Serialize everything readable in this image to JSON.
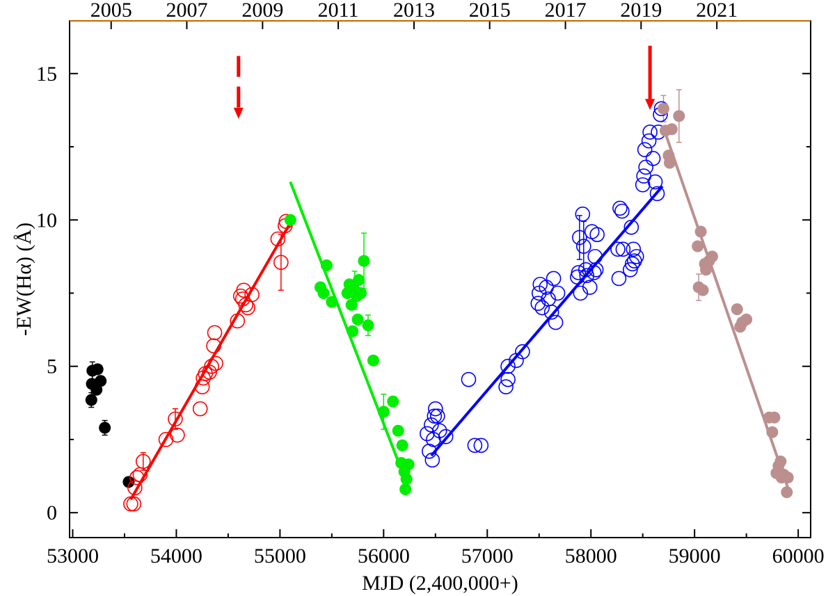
{
  "chart_data": {
    "type": "scatter",
    "title": "",
    "xlabel": "MJD (2,400,000+)",
    "ylabel": "-EW(Hα) (Å)",
    "xlim": [
      52970,
      60120
    ],
    "ylim": [
      -0.85,
      16.8
    ],
    "grid": false,
    "x_ticks": [
      53000,
      54000,
      55000,
      56000,
      57000,
      58000,
      59000,
      60000
    ],
    "y_ticks": [
      0,
      5,
      10,
      15
    ],
    "top_axis": {
      "labels": [
        "2005",
        "2007",
        "2009",
        "2011",
        "2013",
        "2015",
        "2017",
        "2019",
        "2021"
      ],
      "positions_mjd": [
        53371,
        54101,
        54832,
        55562,
        56293,
        57023,
        57754,
        58484,
        59215
      ]
    },
    "series": [
      {
        "color": "#000000",
        "marker": "filled-circle",
        "points": [
          [
            53190,
            4.85
          ],
          [
            53185,
            4.4
          ],
          [
            53240,
            4.9
          ],
          [
            53270,
            4.5
          ],
          [
            53230,
            4.2
          ],
          [
            53180,
            3.85
          ],
          [
            53310,
            2.9
          ],
          [
            53540,
            1.05
          ]
        ],
        "errors": [
          [
            53190,
            0.3
          ],
          [
            53180,
            0.25
          ],
          [
            53310,
            0.25
          ]
        ]
      },
      {
        "color": "#ff0000",
        "marker": "open-circle",
        "points": [
          [
            53560,
            0.3
          ],
          [
            53590,
            0.3
          ],
          [
            53600,
            0.85
          ],
          [
            53620,
            1.2
          ],
          [
            53650,
            1.3
          ],
          [
            53680,
            1.75
          ],
          [
            53900,
            2.5
          ],
          [
            53990,
            3.2
          ],
          [
            54010,
            2.65
          ],
          [
            54230,
            3.55
          ],
          [
            54250,
            4.3
          ],
          [
            54260,
            4.6
          ],
          [
            54280,
            4.75
          ],
          [
            54320,
            4.8
          ],
          [
            54340,
            5.0
          ],
          [
            54360,
            5.7
          ],
          [
            54370,
            6.15
          ],
          [
            54380,
            5.1
          ],
          [
            54590,
            6.55
          ],
          [
            54620,
            7.4
          ],
          [
            54640,
            7.3
          ],
          [
            54650,
            7.6
          ],
          [
            54670,
            7.1
          ],
          [
            54690,
            7.0
          ],
          [
            54730,
            7.45
          ],
          [
            54980,
            9.35
          ],
          [
            55010,
            8.55
          ],
          [
            55050,
            9.8
          ],
          [
            55060,
            9.95
          ]
        ],
        "errors": [
          [
            53680,
            0.3
          ],
          [
            53990,
            0.35
          ],
          [
            55010,
            0.95
          ]
        ],
        "fit": [
          [
            53560,
            0.45
          ],
          [
            55100,
            9.9
          ]
        ],
        "arrow": {
          "x": 54600,
          "y_top": 15.6,
          "y_tip": 13.5,
          "dashed": true
        }
      },
      {
        "color": "#00ee00",
        "marker": "filled-circle",
        "points": [
          [
            55100,
            10.0
          ],
          [
            55390,
            7.7
          ],
          [
            55420,
            7.5
          ],
          [
            55450,
            8.45
          ],
          [
            55500,
            7.2
          ],
          [
            55650,
            7.5
          ],
          [
            55670,
            7.8
          ],
          [
            55690,
            7.1
          ],
          [
            55700,
            6.2
          ],
          [
            55720,
            7.6
          ],
          [
            55740,
            7.4
          ],
          [
            55750,
            6.6
          ],
          [
            55760,
            7.95
          ],
          [
            55780,
            7.5
          ],
          [
            55810,
            8.6
          ],
          [
            55850,
            6.4
          ],
          [
            55900,
            5.2
          ],
          [
            56000,
            3.45
          ],
          [
            56090,
            3.8
          ],
          [
            56140,
            2.8
          ],
          [
            56170,
            1.7
          ],
          [
            56180,
            2.3
          ],
          [
            56200,
            1.4
          ],
          [
            56210,
            0.8
          ],
          [
            56220,
            1.15
          ],
          [
            56240,
            1.65
          ]
        ],
        "errors": [
          [
            55720,
            0.65
          ],
          [
            55810,
            0.95
          ],
          [
            55850,
            0.35
          ],
          [
            56000,
            0.6
          ],
          [
            56220,
            0.35
          ]
        ],
        "fit": [
          [
            55100,
            11.3
          ],
          [
            56250,
            0.75
          ]
        ]
      },
      {
        "color": "#0000ff",
        "marker": "open-circle",
        "points": [
          [
            56420,
            2.7
          ],
          [
            56440,
            2.1
          ],
          [
            56460,
            3.0
          ],
          [
            56470,
            1.8
          ],
          [
            56480,
            2.5
          ],
          [
            56490,
            3.3
          ],
          [
            56500,
            3.55
          ],
          [
            56520,
            3.3
          ],
          [
            56540,
            2.8
          ],
          [
            56600,
            2.6
          ],
          [
            56820,
            4.55
          ],
          [
            56880,
            2.3
          ],
          [
            56940,
            2.3
          ],
          [
            57180,
            4.3
          ],
          [
            57200,
            5.0
          ],
          [
            57200,
            4.55
          ],
          [
            57280,
            5.2
          ],
          [
            57340,
            5.5
          ],
          [
            57490,
            7.15
          ],
          [
            57500,
            7.5
          ],
          [
            57510,
            7.8
          ],
          [
            57530,
            7.0
          ],
          [
            57570,
            7.7
          ],
          [
            57590,
            7.3
          ],
          [
            57620,
            6.85
          ],
          [
            57640,
            8.0
          ],
          [
            57660,
            6.5
          ],
          [
            57680,
            7.5
          ],
          [
            57870,
            8.05
          ],
          [
            57880,
            8.2
          ],
          [
            57890,
            9.4
          ],
          [
            57900,
            7.5
          ],
          [
            57920,
            10.2
          ],
          [
            57930,
            9.1
          ],
          [
            57950,
            8.3
          ],
          [
            57960,
            8.1
          ],
          [
            57990,
            7.7
          ],
          [
            58010,
            9.6
          ],
          [
            58030,
            8.2
          ],
          [
            58040,
            8.75
          ],
          [
            58050,
            8.3
          ],
          [
            58060,
            9.5
          ],
          [
            58260,
            9.0
          ],
          [
            58270,
            8.0
          ],
          [
            58280,
            10.4
          ],
          [
            58300,
            10.3
          ],
          [
            58310,
            9.0
          ],
          [
            58380,
            8.3
          ],
          [
            58390,
            9.75
          ],
          [
            58400,
            8.5
          ],
          [
            58410,
            9.0
          ],
          [
            58420,
            8.6
          ],
          [
            58440,
            8.75
          ],
          [
            58500,
            11.2
          ],
          [
            58510,
            11.5
          ],
          [
            58520,
            12.4
          ],
          [
            58530,
            11.8
          ],
          [
            58560,
            12.7
          ],
          [
            58570,
            13.0
          ],
          [
            58600,
            12.1
          ],
          [
            58620,
            11.3
          ],
          [
            58640,
            10.9
          ],
          [
            58650,
            13.0
          ],
          [
            58670,
            13.6
          ],
          [
            58680,
            13.8
          ]
        ],
        "errors": [
          [
            57930,
            0.85
          ],
          [
            57890,
            0.75
          ]
        ],
        "fit": [
          [
            56460,
            1.95
          ],
          [
            58690,
            11.15
          ]
        ],
        "arrow": {
          "x": 58570,
          "y_top": 15.95,
          "y_tip": 13.8,
          "dashed": false
        }
      },
      {
        "color": "#bc8f8f",
        "marker": "filled-circle",
        "points": [
          [
            58700,
            13.8
          ],
          [
            58720,
            13.05
          ],
          [
            58750,
            12.2
          ],
          [
            58760,
            11.95
          ],
          [
            58780,
            13.1
          ],
          [
            58850,
            13.55
          ],
          [
            59030,
            9.1
          ],
          [
            59040,
            7.7
          ],
          [
            59060,
            9.6
          ],
          [
            59080,
            7.6
          ],
          [
            59100,
            8.5
          ],
          [
            59110,
            8.3
          ],
          [
            59140,
            8.6
          ],
          [
            59170,
            8.75
          ],
          [
            59410,
            6.95
          ],
          [
            59440,
            6.35
          ],
          [
            59460,
            6.5
          ],
          [
            59500,
            6.6
          ],
          [
            59720,
            3.25
          ],
          [
            59750,
            2.75
          ],
          [
            59770,
            3.25
          ],
          [
            59790,
            1.35
          ],
          [
            59810,
            1.6
          ],
          [
            59830,
            1.75
          ],
          [
            59840,
            1.2
          ],
          [
            59860,
            1.3
          ],
          [
            59890,
            0.7
          ],
          [
            59900,
            1.2
          ]
        ],
        "errors": [
          [
            58700,
            0.45
          ],
          [
            58850,
            0.9
          ],
          [
            59040,
            0.45
          ]
        ],
        "fit": [
          [
            58700,
            13.15
          ],
          [
            59910,
            0.75
          ]
        ]
      }
    ]
  }
}
